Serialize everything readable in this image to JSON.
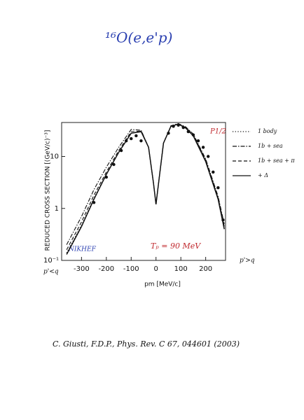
{
  "header": "¹⁶O(e,e'p)",
  "citation": "C. Giusti, F.D.P., Phys. Rev. C 67, 044601 (2003)",
  "chart_data": {
    "type": "line",
    "y_label": "REDUCED CROSS SECTION [(GeV/c)⁻³]",
    "x_label": "pm [MeV/c]",
    "state_label": "P1/2",
    "lab_label": "NIKHEF",
    "energy_label": "Tₚ = 90 MeV",
    "left_region_label": "p'<q",
    "right_region_label": "p'>q",
    "log_y": true,
    "xlim": [
      -380,
      280
    ],
    "xticks": [
      -300,
      -200,
      -100,
      0,
      100,
      200
    ],
    "ylim": [
      0.1,
      45
    ],
    "yticks": [
      {
        "value": 0.1,
        "label": "10⁻¹"
      },
      1,
      10
    ],
    "x": [
      -360,
      -300,
      -250,
      -200,
      -150,
      -100,
      -60,
      -30,
      -10,
      0,
      10,
      30,
      60,
      90,
      120,
      150,
      200,
      250,
      275
    ],
    "series": [
      {
        "name": "1 body",
        "color": "#111111",
        "dash": "dotted",
        "values": [
          0.14,
          0.48,
          1.6,
          4.6,
          12,
          28,
          31,
          15,
          3,
          1.2,
          3,
          18,
          38,
          42,
          36,
          26,
          8.5,
          1.6,
          0.45
        ]
      },
      {
        "name": "1b + sea",
        "color": "#111111",
        "dash": "dashdot",
        "values": [
          0.2,
          0.7,
          2.3,
          6.2,
          15,
          33,
          32,
          15,
          3,
          1.2,
          3,
          18,
          39,
          43,
          37,
          27,
          9,
          1.7,
          0.5
        ]
      },
      {
        "name": "1b + sea + π",
        "color": "#111111",
        "dash": "dashed",
        "values": [
          0.16,
          0.55,
          1.8,
          5,
          13,
          30,
          31,
          15,
          3,
          1.2,
          3,
          18,
          38,
          42,
          36,
          26,
          8.5,
          1.6,
          0.45
        ]
      },
      {
        "name": "+ Δ",
        "color": "#111111",
        "dash": "solid",
        "values": [
          0.13,
          0.45,
          1.5,
          4.5,
          12,
          28,
          30,
          15,
          3,
          1.2,
          3,
          18,
          38,
          42,
          35,
          25,
          8,
          1.5,
          0.4
        ]
      }
    ],
    "data_points": {
      "x": [
        -250,
        -200,
        -170,
        -140,
        -120,
        -100,
        -80,
        -60,
        50,
        70,
        90,
        110,
        130,
        150,
        170,
        190,
        210,
        230,
        250,
        270
      ],
      "y": [
        1.3,
        4,
        7,
        13,
        20,
        22,
        25,
        20,
        28,
        38,
        40,
        36,
        30,
        26,
        20,
        15,
        10,
        5,
        2.5,
        0.6
      ]
    }
  }
}
